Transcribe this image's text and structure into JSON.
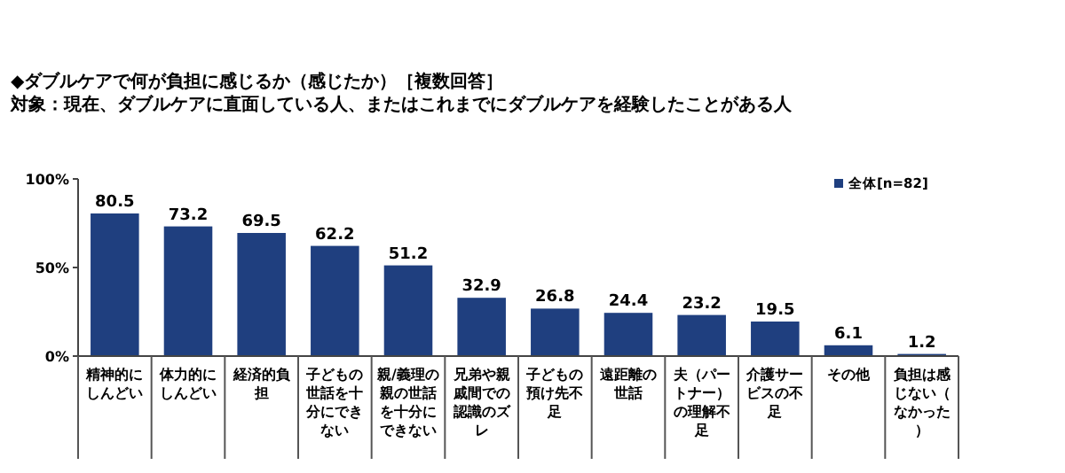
{
  "chart_data": {
    "type": "bar",
    "title": "◆ダブルケアで何が負担に感じるか（感じたか）［複数回答］",
    "subtitle": "対象：現在、ダブルケアに直面している人、またはこれまでにダブルケアを経験したことがある人",
    "categories": [
      "精神的にしんどい",
      "体力的にしんどい",
      "経済的負担",
      "子どもの世話を十分にできない",
      "親/義理の親の世話を十分にできない",
      "兄弟や親戚間での認識のズレ",
      "子どもの預け先不足",
      "遠距離の世話",
      "夫（パートナー）の理解不足",
      "介護サービスの不足",
      "その他",
      "負担は感じない（なかった）"
    ],
    "series": [
      {
        "name": "全体[n=82]",
        "color": "#1f3f7f",
        "values": [
          80.5,
          73.2,
          69.5,
          62.2,
          51.2,
          32.9,
          26.8,
          24.4,
          23.2,
          19.5,
          6.1,
          1.2
        ]
      }
    ],
    "ylim": [
      0,
      100
    ],
    "yticks": [
      {
        "value": 0,
        "label": "0%"
      },
      {
        "value": 50,
        "label": "50%"
      },
      {
        "value": 100,
        "label": "100%"
      }
    ],
    "data_labels": true,
    "legend": "top right",
    "grid": false
  }
}
